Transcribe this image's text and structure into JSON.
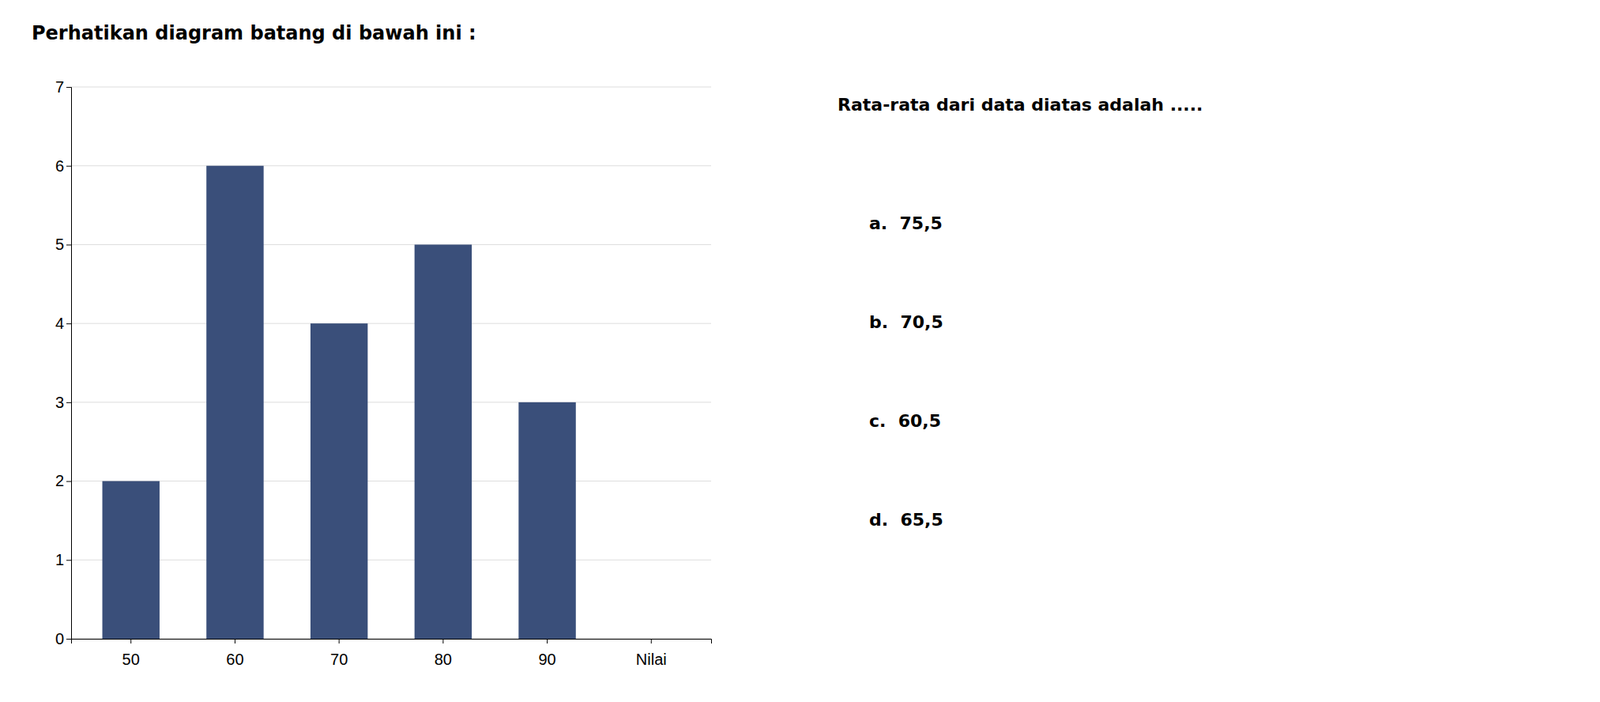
{
  "chart_data": {
    "type": "bar",
    "title": "Perhatikan diagram batang di bawah ini :",
    "categories": [
      "50",
      "60",
      "70",
      "80",
      "90",
      "Nilai"
    ],
    "values": [
      2,
      6,
      4,
      5,
      3,
      null
    ],
    "color": "#3A4F7A",
    "ylim": [
      0,
      7
    ],
    "yticks": [
      0,
      1,
      2,
      3,
      4,
      5,
      6,
      7
    ],
    "grid": true,
    "annotations": [
      "Rata-rata dari data diatas adalah .....",
      "a.  75,5",
      "b.  70,5",
      "c.  60,5",
      "d.  65,5"
    ]
  }
}
